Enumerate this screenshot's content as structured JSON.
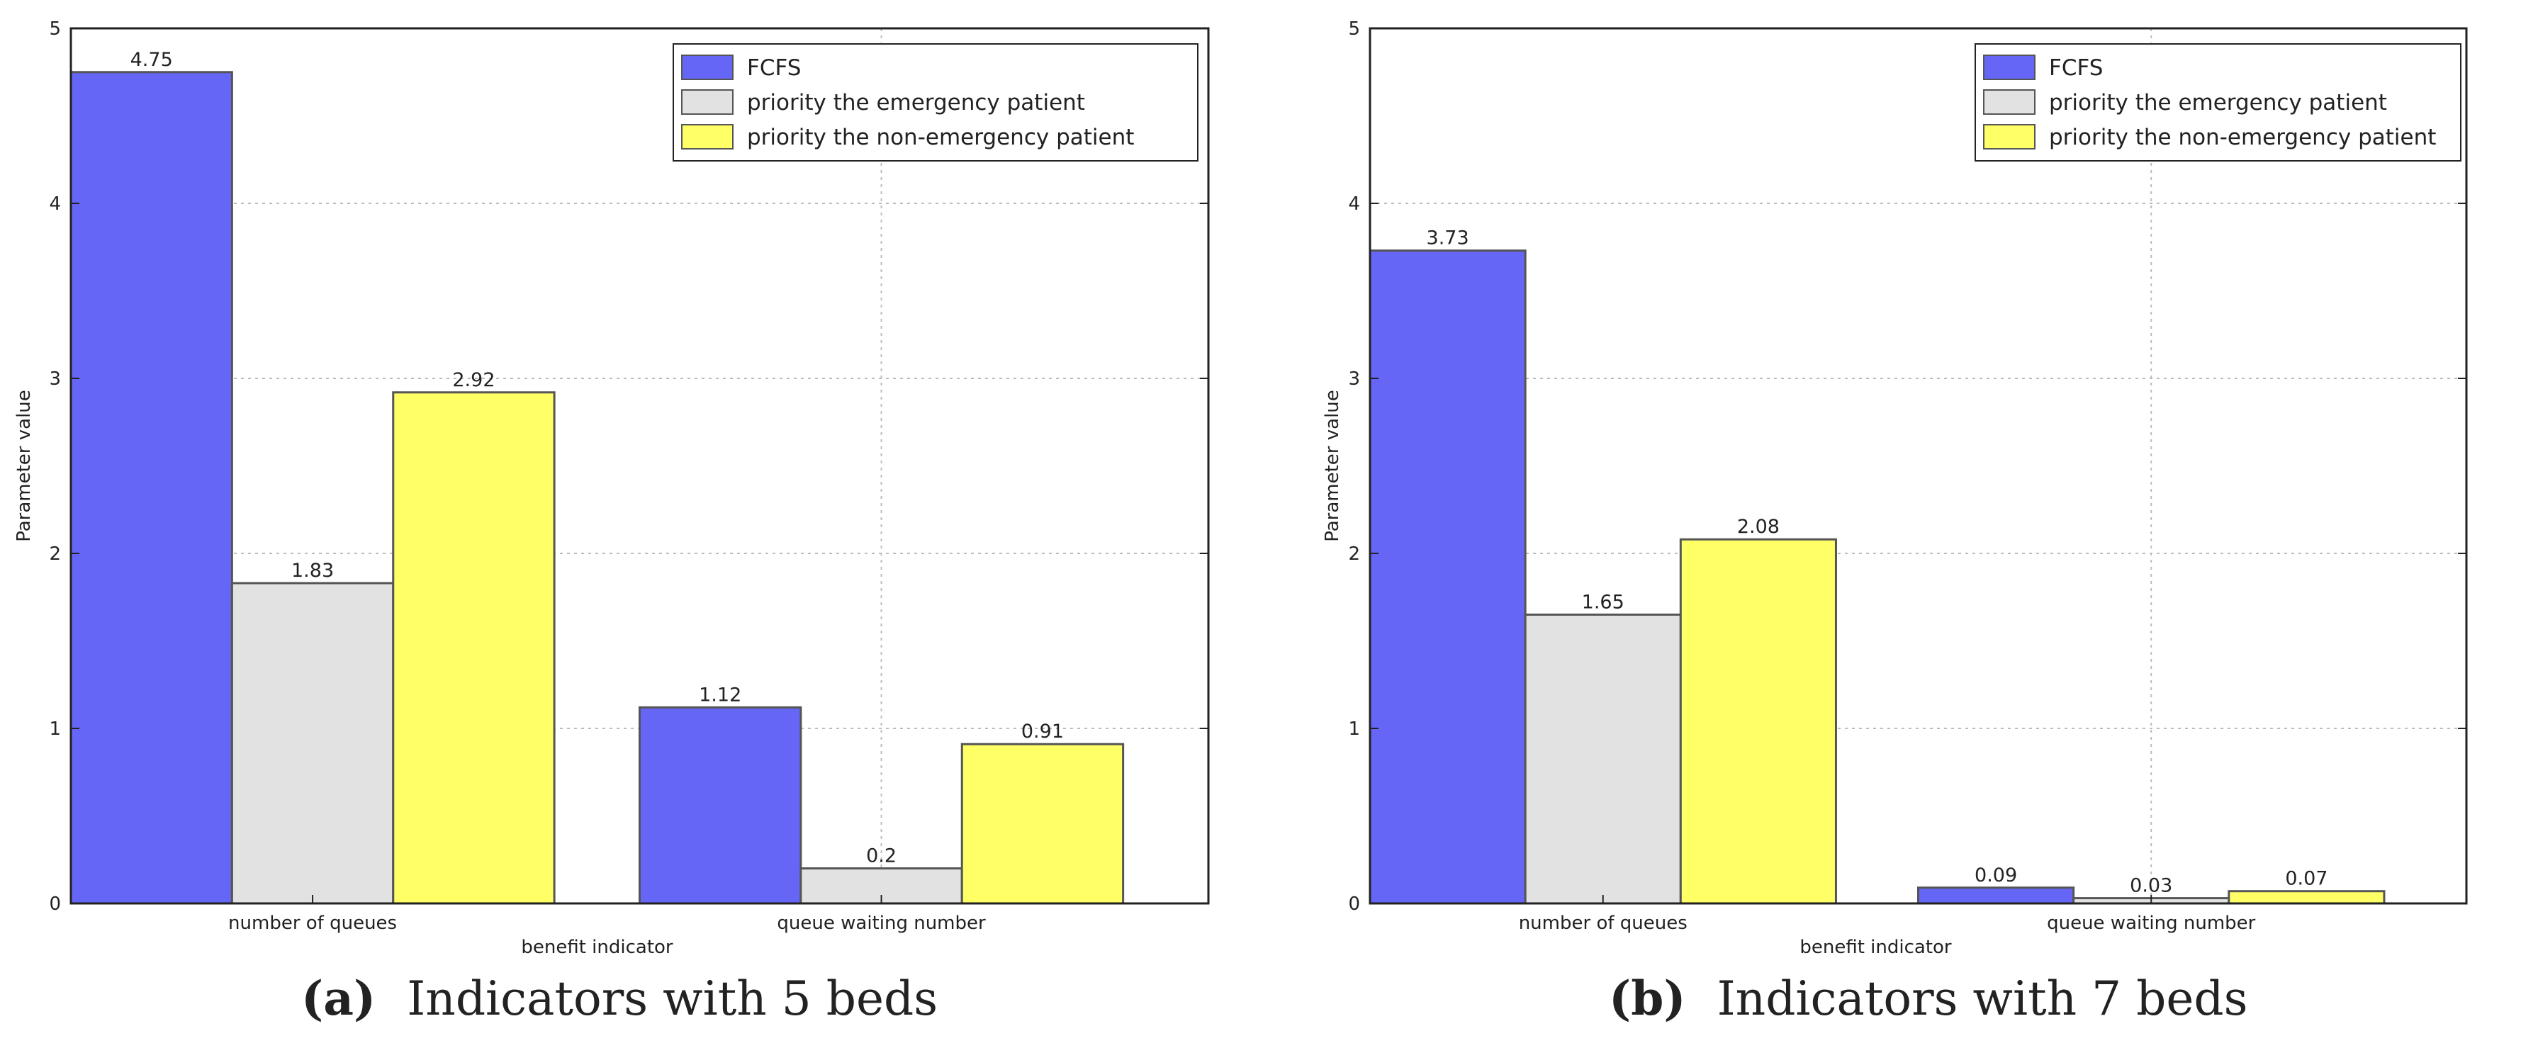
{
  "colors": {
    "fcfs": "#6666f6",
    "emergency": "#e2e2e2",
    "non_emergency": "#ffff66",
    "bar_edge": "#555555",
    "axis": "#222222",
    "grid": "#bbbbbb",
    "text": "#222222"
  },
  "chart_data": [
    {
      "type": "bar",
      "panel": "a",
      "caption_tag": "(a)",
      "caption": "Indicators with 5 beds",
      "xlabel": "benefit indicator",
      "ylabel": "Parameter value",
      "ylim": [
        0,
        5
      ],
      "yticks": [
        "0",
        "1",
        "2",
        "3",
        "4",
        "5"
      ],
      "categories": [
        "number of queues",
        "queue waiting number"
      ],
      "series": [
        {
          "name": "FCFS",
          "color_key": "fcfs",
          "values": [
            4.75,
            1.12
          ],
          "labels": [
            "4.75",
            "1.12"
          ]
        },
        {
          "name": "priority the emergency patient",
          "color_key": "emergency",
          "values": [
            1.83,
            0.2
          ],
          "labels": [
            "1.83",
            "0.2"
          ]
        },
        {
          "name": "priority the non-emergency patient",
          "color_key": "non_emergency",
          "values": [
            2.92,
            0.91
          ],
          "labels": [
            "2.92",
            "0.91"
          ]
        }
      ],
      "legend": "top-right",
      "grid": true
    },
    {
      "type": "bar",
      "panel": "b",
      "caption_tag": "(b)",
      "caption": "Indicators with 7 beds",
      "xlabel": "benefit indicator",
      "ylabel": "Parameter value",
      "ylim": [
        0,
        5
      ],
      "yticks": [
        "0",
        "1",
        "2",
        "3",
        "4",
        "5"
      ],
      "categories": [
        "number of queues",
        "queue waiting number"
      ],
      "series": [
        {
          "name": "FCFS",
          "color_key": "fcfs",
          "values": [
            3.73,
            0.09
          ],
          "labels": [
            "3.73",
            "0.09"
          ]
        },
        {
          "name": "priority the emergency patient",
          "color_key": "emergency",
          "values": [
            1.65,
            0.03
          ],
          "labels": [
            "1.65",
            "0.03"
          ]
        },
        {
          "name": "priority the non-emergency patient",
          "color_key": "non_emergency",
          "values": [
            2.08,
            0.07
          ],
          "labels": [
            "2.08",
            "0.07"
          ]
        }
      ],
      "legend": "top-right",
      "grid": true
    }
  ]
}
